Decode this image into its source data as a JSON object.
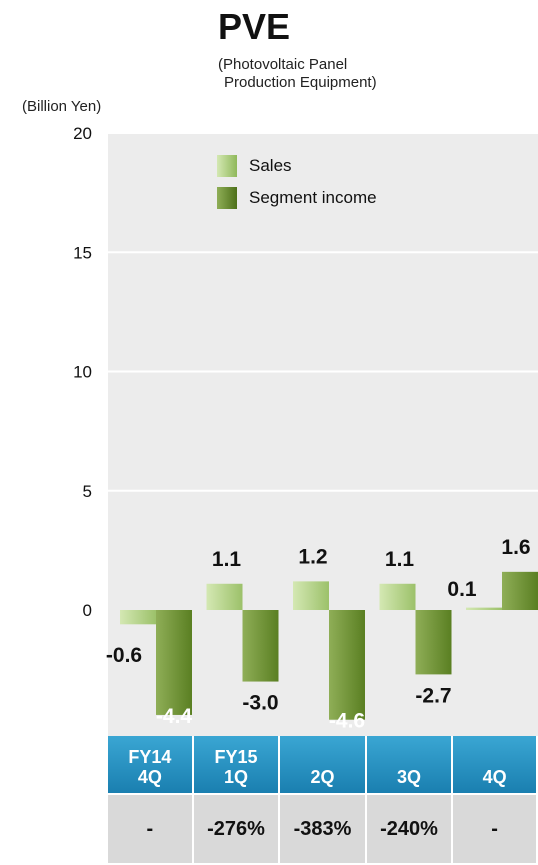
{
  "header": {
    "title": "PVE",
    "subtitle_line1": "(Photovoltaic Panel",
    "subtitle_line2": "Production Equipment)",
    "unit": "(Billion Yen)"
  },
  "legend": {
    "sales_label": "Sales",
    "income_label": "Segment income"
  },
  "colors": {
    "sales": "#9cc16a",
    "income": "#5a7f22",
    "plot_bg": "#ececec",
    "table_header": "#2a93c4",
    "table_row": "#d9d9d9"
  },
  "chart_data": {
    "type": "bar",
    "categories": [
      "FY14 4Q",
      "FY15 1Q",
      "2Q",
      "3Q",
      "4Q"
    ],
    "series": [
      {
        "name": "Sales",
        "values": [
          -0.6,
          1.1,
          1.2,
          1.1,
          0.1
        ]
      },
      {
        "name": "Segment income",
        "values": [
          -4.4,
          -3.0,
          -4.6,
          -2.7,
          1.6
        ]
      }
    ],
    "data_labels": {
      "Sales": [
        "-0.6",
        "1.1",
        "1.2",
        "1.1",
        "0.1"
      ],
      "Segment income": [
        "-4.4",
        "-3.0",
        "-4.6",
        "-2.7",
        "1.6"
      ]
    },
    "yticks": [
      0,
      5,
      10,
      15,
      20
    ],
    "ylim": [
      -5,
      20
    ],
    "grid": true,
    "legend_position": "top-left"
  },
  "table": {
    "quarter_line1": [
      "FY14",
      "FY15",
      "",
      "",
      ""
    ],
    "quarter_line2": [
      "4Q",
      "1Q",
      "2Q",
      "3Q",
      "4Q"
    ],
    "percent": [
      "-",
      "-276%",
      "-383%",
      "-240%",
      "-"
    ]
  }
}
